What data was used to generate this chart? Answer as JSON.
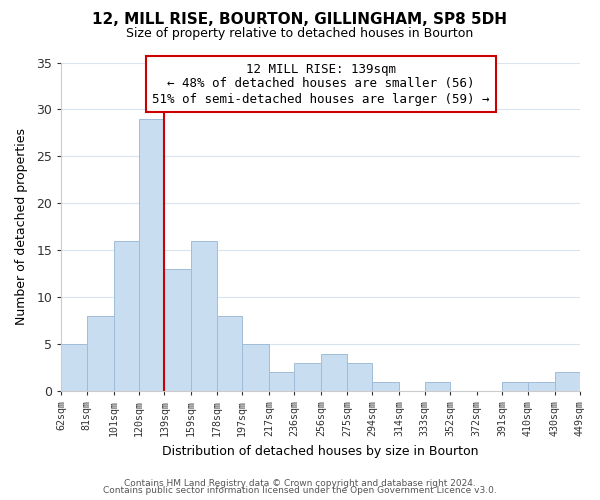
{
  "title": "12, MILL RISE, BOURTON, GILLINGHAM, SP8 5DH",
  "subtitle": "Size of property relative to detached houses in Bourton",
  "xlabel": "Distribution of detached houses by size in Bourton",
  "ylabel": "Number of detached properties",
  "bar_color": "#c8ddf0",
  "bar_edge_color": "#a0bcd8",
  "bins": [
    62,
    81,
    101,
    120,
    139,
    159,
    178,
    197,
    217,
    236,
    256,
    275,
    294,
    314,
    333,
    352,
    372,
    391,
    410,
    430,
    449
  ],
  "counts": [
    5,
    8,
    16,
    29,
    13,
    16,
    8,
    5,
    2,
    3,
    4,
    3,
    1,
    0,
    1,
    0,
    0,
    1,
    1,
    2
  ],
  "tick_labels": [
    "62sqm",
    "81sqm",
    "101sqm",
    "120sqm",
    "139sqm",
    "159sqm",
    "178sqm",
    "197sqm",
    "217sqm",
    "236sqm",
    "256sqm",
    "275sqm",
    "294sqm",
    "314sqm",
    "333sqm",
    "352sqm",
    "372sqm",
    "391sqm",
    "410sqm",
    "430sqm",
    "449sqm"
  ],
  "vline_x": 139,
  "vline_color": "#cc0000",
  "annotation_title": "12 MILL RISE: 139sqm",
  "annotation_line1": "← 48% of detached houses are smaller (56)",
  "annotation_line2": "51% of semi-detached houses are larger (59) →",
  "ylim": [
    0,
    35
  ],
  "yticks": [
    0,
    5,
    10,
    15,
    20,
    25,
    30,
    35
  ],
  "footer1": "Contains HM Land Registry data © Crown copyright and database right 2024.",
  "footer2": "Contains public sector information licensed under the Open Government Licence v3.0.",
  "background_color": "#ffffff",
  "grid_color": "#d8e4f0"
}
